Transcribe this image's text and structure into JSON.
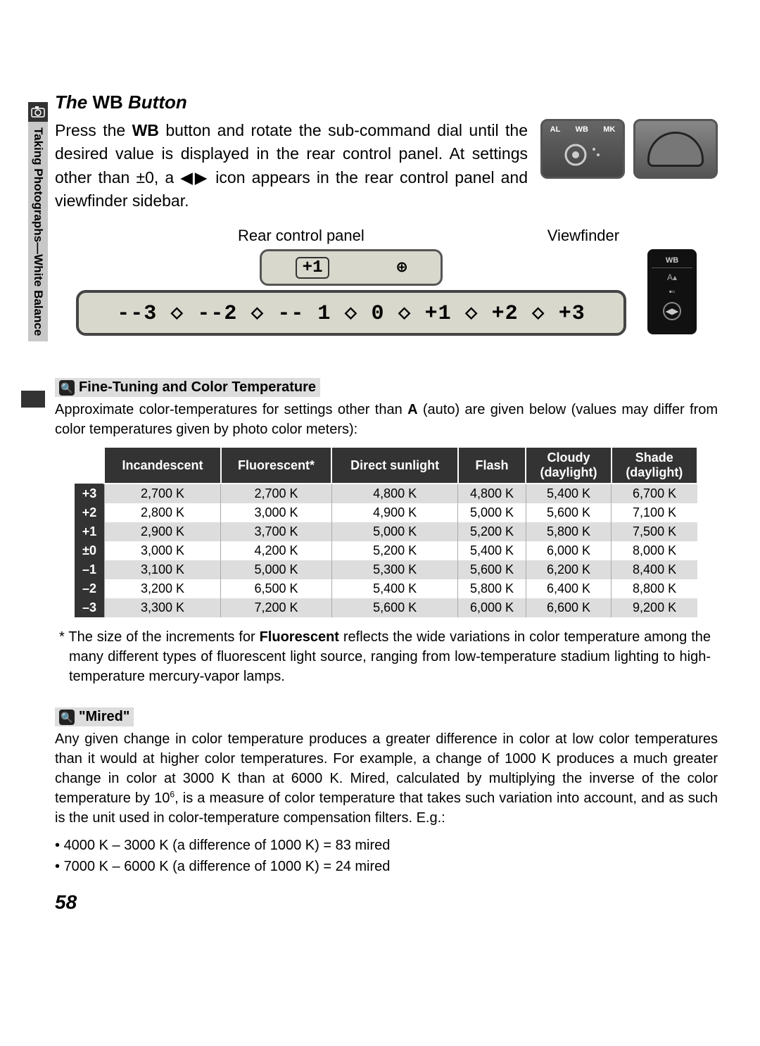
{
  "sideLabel": "Taking Photographs—White Balance",
  "title_pre": "The ",
  "title_bold": "WB",
  "title_post": " Button",
  "intro_html": "Press the <b>WB</b> button and rotate the sub-command dial until the desired value is displayed in the rear control panel.  At settings other than ±0, a ◀▶ icon appears in the rear control panel and viewfinder sidebar.",
  "thumb1_labels": [
    "AL",
    "WB",
    "MK"
  ],
  "rear_label": "Rear control panel",
  "vf_label": "Viewfinder",
  "rear_top_boxed": "+1",
  "rear_top_icon": "⊕",
  "scale_text": "--3 ◇ --2 ◇ -- 1 ◇   0 ◇ +1 ◇ +2 ◇ +3",
  "vf_wb": "WB",
  "note1_title": "Fine-Tuning and Color Temperature",
  "note1_text": "Approximate color-temperatures for settings other than <b>A</b> (auto) are given below (values may differ from color temperatures given by photo color meters):",
  "table": {
    "headers": [
      "",
      "Incandescent",
      "Fluorescent*",
      "Direct sunlight",
      "Flash",
      "Cloudy (daylight)",
      "Shade (daylight)"
    ],
    "rows": [
      [
        "+3",
        "2,700 K",
        "2,700 K",
        "4,800 K",
        "4,800 K",
        "5,400 K",
        "6,700 K"
      ],
      [
        "+2",
        "2,800 K",
        "3,000 K",
        "4,900 K",
        "5,000 K",
        "5,600 K",
        "7,100 K"
      ],
      [
        "+1",
        "2,900 K",
        "3,700 K",
        "5,000 K",
        "5,200 K",
        "5,800 K",
        "7,500 K"
      ],
      [
        "±0",
        "3,000 K",
        "4,200 K",
        "5,200 K",
        "5,400 K",
        "6,000 K",
        "8,000 K"
      ],
      [
        "–1",
        "3,100 K",
        "5,000 K",
        "5,300 K",
        "5,600 K",
        "6,200 K",
        "8,400 K"
      ],
      [
        "–2",
        "3,200 K",
        "6,500 K",
        "5,400 K",
        "5,800 K",
        "6,400 K",
        "8,800 K"
      ],
      [
        "–3",
        "3,300 K",
        "7,200 K",
        "5,600 K",
        "6,000 K",
        "6,600 K",
        "9,200 K"
      ]
    ]
  },
  "footnote_html": "* The size of the increments for <b>Fluorescent</b> reflects the wide variations in color temperature among the many different types of fluorescent light source, ranging from low-temperature stadium lighting to high-temperature mercury-vapor lamps.",
  "note2_title": "\"Mired\"",
  "note2_text": "Any given change in color temperature produces a greater difference in color at low color temperatures than it would at higher color temperatures.  For example, a change of 1000 K produces a much greater change in color at 3000 K than at 6000 K.  Mired, calculated by multiplying the inverse of the color temperature by 10<sup>6</sup>, is a measure of color temperature that takes such variation into account, and as such is the unit used in color-temperature compensation filters.  E.g.:",
  "bullet1": "4000 K – 3000 K (a difference of 1000 K) = 83 mired",
  "bullet2": "7000 K – 6000 K (a difference of 1000 K) = 24 mired",
  "page_num": "58",
  "colors": {
    "header_bg": "#333333",
    "row_stripe": "#dddddd",
    "panel_bg": "#d8d8cc"
  }
}
